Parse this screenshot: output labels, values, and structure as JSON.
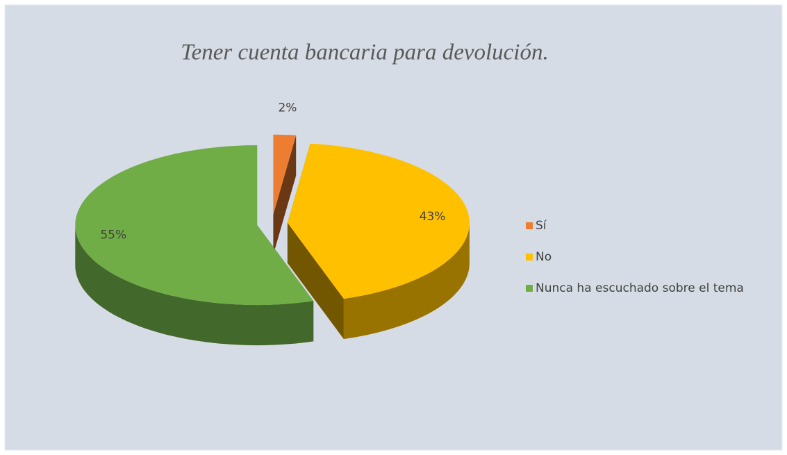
{
  "chart_data": {
    "type": "pie",
    "title": "Tener cuenta bancaria para devolución.",
    "categories": [
      "Sí",
      "No",
      "Nunca ha escuchado sobre el tema"
    ],
    "values": [
      2,
      43,
      55
    ],
    "value_labels": [
      "2%",
      "43%",
      "55%"
    ],
    "colors": [
      "#ed7d31",
      "#ffc000",
      "#70ad47"
    ],
    "legend": "right"
  }
}
